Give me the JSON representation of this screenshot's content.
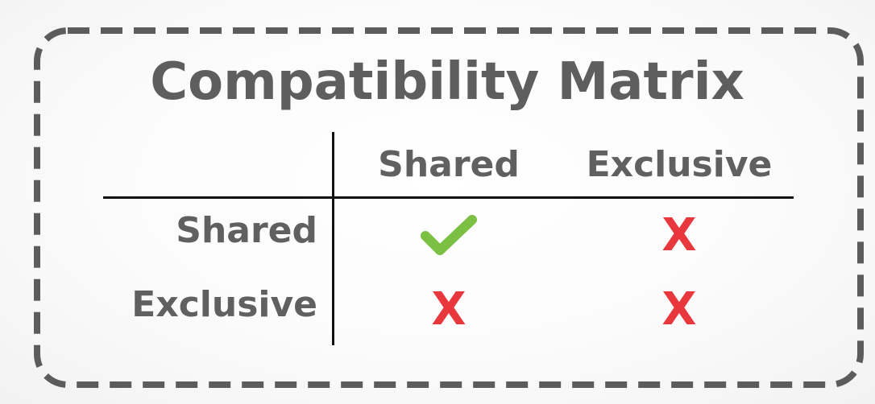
{
  "title": "Compatibility Matrix",
  "columns": [
    {
      "label": "Shared"
    },
    {
      "label": "Exclusive"
    }
  ],
  "rows": [
    {
      "label": "Shared",
      "cells": [
        {
          "compatible": true,
          "symbol": "check-icon"
        },
        {
          "compatible": false,
          "symbol": "X"
        }
      ]
    },
    {
      "label": "Exclusive",
      "cells": [
        {
          "compatible": false,
          "symbol": "X"
        },
        {
          "compatible": false,
          "symbol": "X"
        }
      ]
    }
  ],
  "colors": {
    "text": "#606060",
    "border": "#5c5c5c",
    "check": "#7bc043",
    "cross": "#e8383e",
    "grid": "#111111"
  }
}
